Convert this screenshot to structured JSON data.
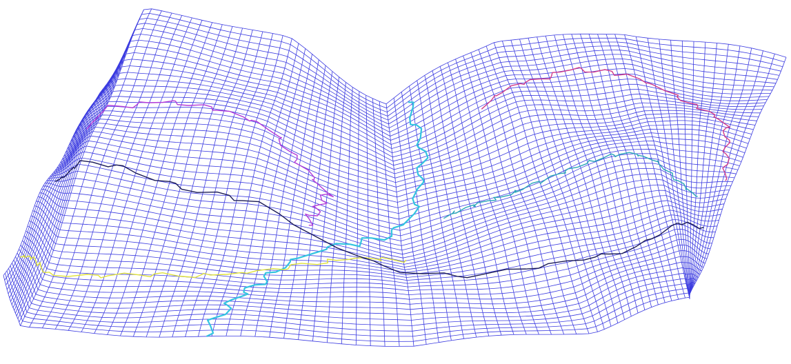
{
  "figure": {
    "type": "wireframe-terrain-surface",
    "background": "#ffffff",
    "mesh_color": "#3a3ae0",
    "mesh_rows": 56,
    "mesh_cols": 86
  },
  "overlay_lines": [
    {
      "name": "valley-channel",
      "color": "#33c4e0"
    },
    {
      "name": "tributary-1",
      "color": "#e0e23a"
    },
    {
      "name": "ridge-line-1",
      "color": "#d03a8a"
    },
    {
      "name": "ridge-line-2",
      "color": "#b23ad8"
    },
    {
      "name": "contour-dark",
      "color": "#1a1a55"
    },
    {
      "name": "contour-teal",
      "color": "#2aa6b8"
    }
  ]
}
